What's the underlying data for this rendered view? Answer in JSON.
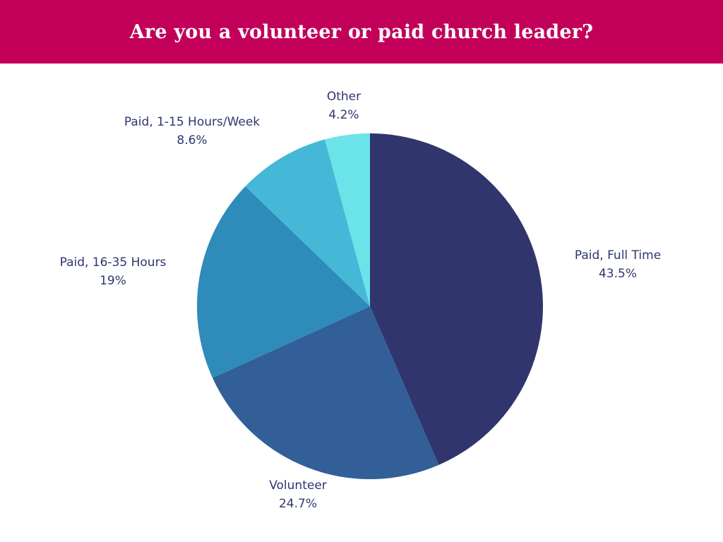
{
  "colors": {
    "header_bg": "#C2005A",
    "label_text": "#2E3670"
  },
  "chart_data": {
    "type": "pie",
    "title": "Are you a volunteer or paid church leader?",
    "slices": [
      {
        "label": "Paid, Full Time",
        "value": 43.5,
        "value_label": "43.5%",
        "color": "#31356E"
      },
      {
        "label": "Volunteer",
        "value": 24.7,
        "value_label": "24.7%",
        "color": "#325F98"
      },
      {
        "label": "Paid, 16-35 Hours",
        "value": 19,
        "value_label": "19%",
        "color": "#2E8BBA"
      },
      {
        "label": "Paid, 1-15 Hours/Week",
        "value": 8.6,
        "value_label": "8.6%",
        "color": "#44B8D6"
      },
      {
        "label": "Other",
        "value": 4.2,
        "value_label": "4.2%",
        "color": "#6AE4E9"
      }
    ],
    "start": "12 o'clock",
    "direction": "clockwise",
    "legend": "none"
  }
}
